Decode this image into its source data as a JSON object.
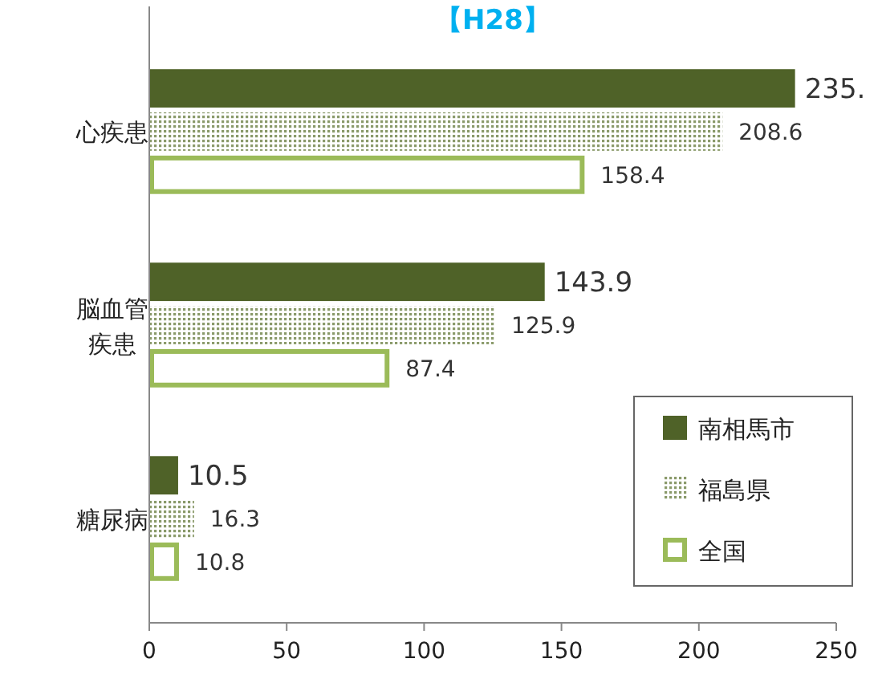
{
  "chart_data": {
    "type": "bar",
    "orientation": "horizontal",
    "title": "【H28】",
    "categories": [
      "心疾患",
      "脳血管疾患",
      "糖尿病"
    ],
    "series": [
      {
        "name": "南相馬市",
        "color": "#4f6228",
        "values": [
          235,
          143.9,
          10.5
        ],
        "value_labels": [
          "235.",
          "143.9",
          "10.5"
        ]
      },
      {
        "name": "福島県",
        "color": "#8a9a6a",
        "values": [
          208.6,
          125.9,
          16.3
        ],
        "value_labels": [
          "208.6",
          "125.9",
          "16.3"
        ]
      },
      {
        "name": "全国",
        "color": "#9bbb59",
        "values": [
          158.4,
          87.4,
          10.8
        ],
        "value_labels": [
          "158.4",
          "87.4",
          "10.8"
        ]
      }
    ],
    "xlim": [
      0,
      250
    ],
    "xticks": [
      0,
      50,
      100,
      150,
      200,
      250
    ],
    "grid": false,
    "legend": "bottom right"
  }
}
